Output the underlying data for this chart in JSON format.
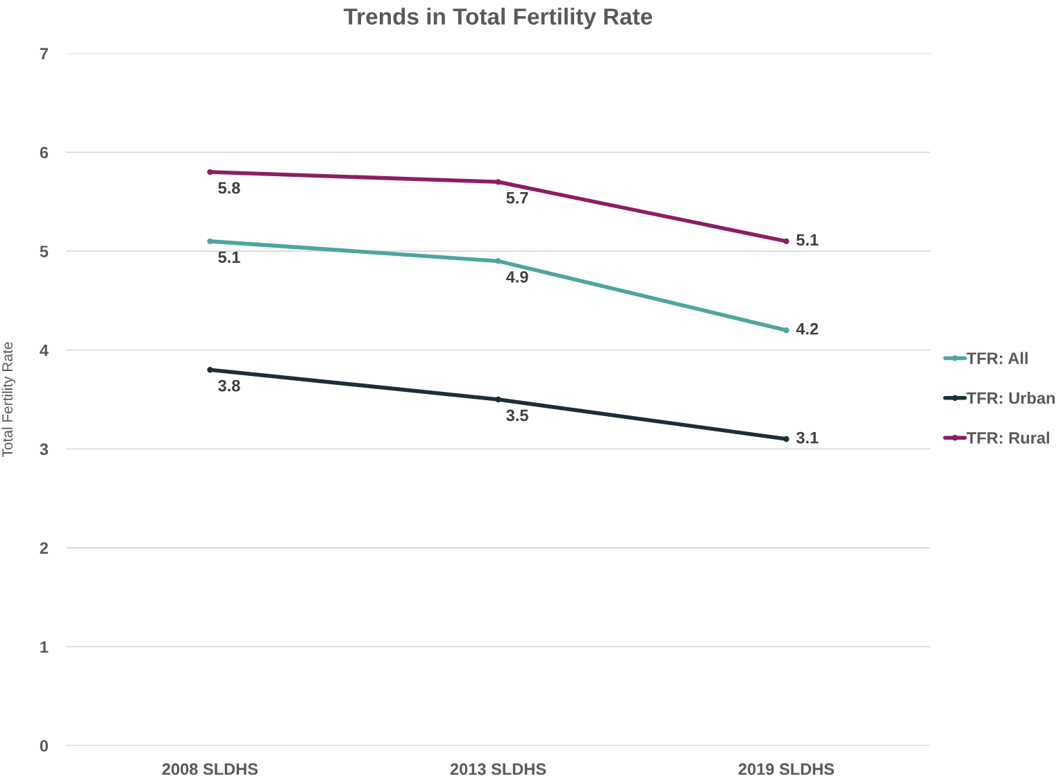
{
  "chart_data": {
    "type": "line",
    "title": "Trends in Total Fertility Rate",
    "ylabel": "Total Fertility Rate",
    "categories": [
      "2008 SLDHS",
      "2013 SLDHS",
      "2019 SLDHS"
    ],
    "series": [
      {
        "name": "TFR: All",
        "color": "#4ea5a0",
        "values": [
          5.1,
          4.9,
          4.2
        ]
      },
      {
        "name": "TFR: Urban",
        "color": "#1b2f38",
        "values": [
          3.8,
          3.5,
          3.1
        ]
      },
      {
        "name": "TFR: Rural",
        "color": "#8b1e63",
        "values": [
          5.8,
          5.7,
          5.1
        ]
      }
    ],
    "ylim": [
      0,
      7
    ],
    "yticks": [
      0,
      1,
      2,
      3,
      4,
      5,
      6,
      7
    ],
    "grid": "y",
    "legend": "right",
    "marker": "circle",
    "line_style": "solid",
    "data_labels": true
  }
}
